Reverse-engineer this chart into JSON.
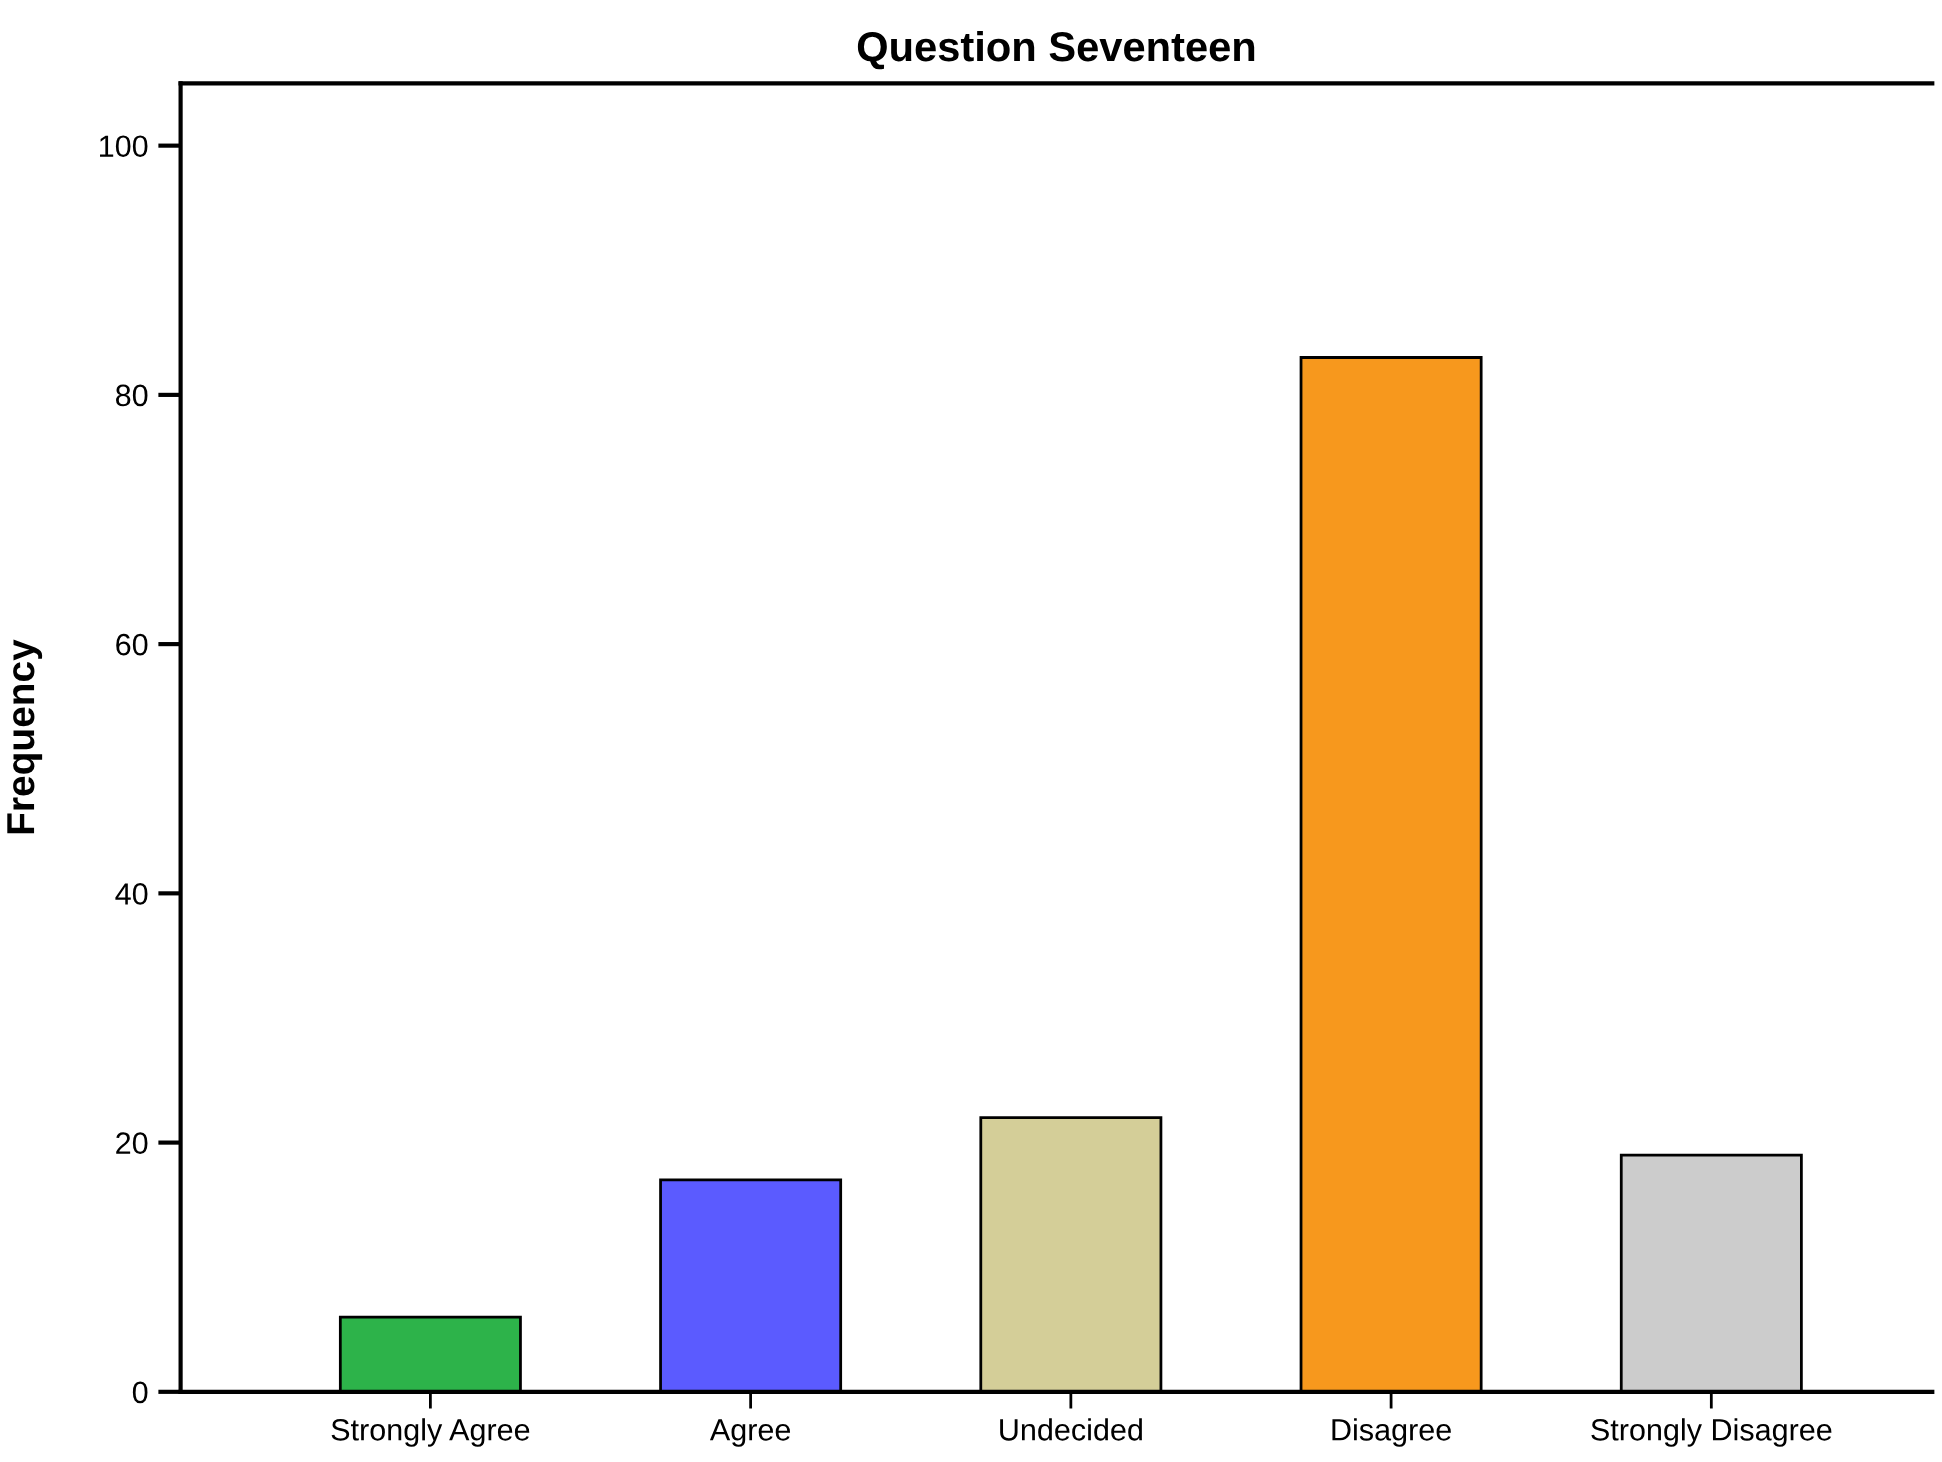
{
  "chart_data": {
    "type": "bar",
    "title": "Question Seventeen",
    "ylabel": "Frequency",
    "categories": [
      "Strongly Agree",
      "Agree",
      "Undecided",
      "Disagree",
      "Strongly Disagree"
    ],
    "values": [
      6,
      17,
      22,
      83,
      19
    ],
    "colors": [
      "#2db34a",
      "#5b5bff",
      "#d4ce98",
      "#f7981d",
      "#cccccc"
    ],
    "ylim": [
      0,
      105
    ],
    "yticks": [
      0,
      20,
      40,
      60,
      80,
      100
    ],
    "grid": false,
    "legend": false
  }
}
